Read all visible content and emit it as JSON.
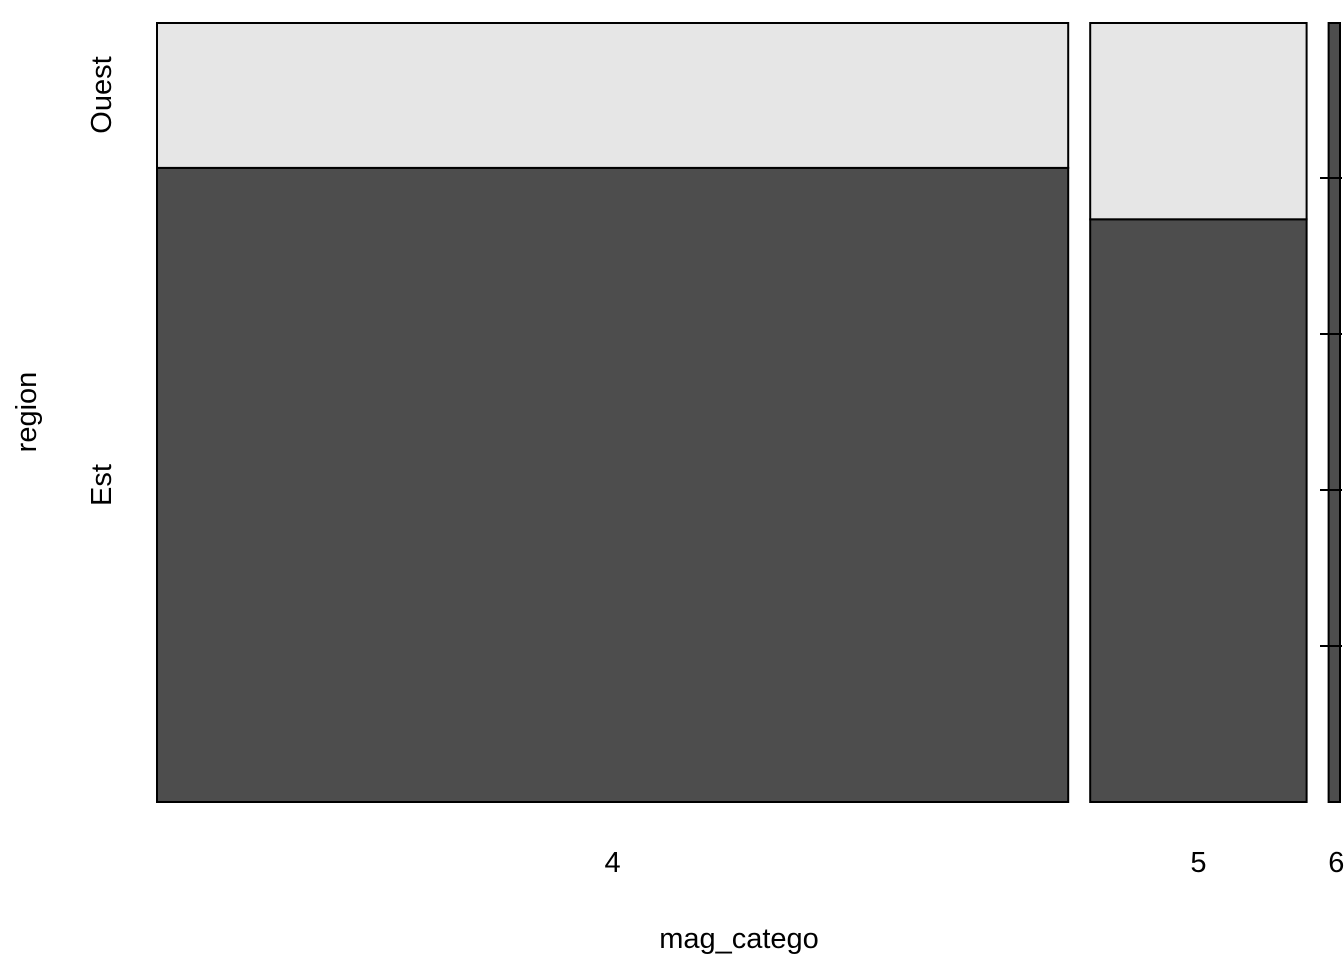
{
  "chart_data": {
    "type": "mosaic",
    "xlabel": "mag_catego",
    "ylabel": "region",
    "x_categories": [
      "4",
      "5",
      "6"
    ],
    "y_categories": [
      "Est",
      "Ouest"
    ],
    "x_proportions": [
      0.8,
      0.19,
      0.01
    ],
    "y_proportions_within_x": {
      "4": {
        "Est": 0.814,
        "Ouest": 0.186
      },
      "5": {
        "Est": 0.748,
        "Ouest": 0.252
      },
      "6": {
        "Est": 1.0,
        "Ouest": 0.0
      }
    },
    "colors": {
      "Est": "#4d4d4d",
      "Ouest": "#e6e6e6"
    }
  }
}
